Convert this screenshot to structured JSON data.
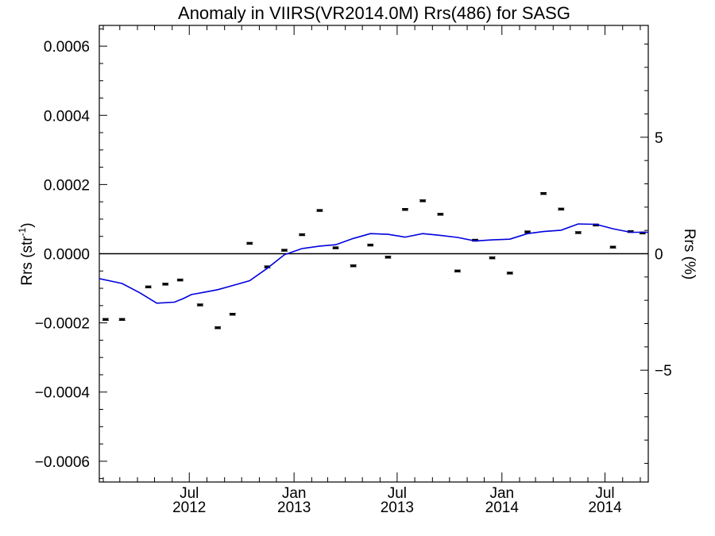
{
  "chart_data": {
    "type": "line",
    "title": "Anomaly in VIIRS(VR2014.0M) Rrs(486) for SASG",
    "ylabel_left": "Rrs (str",
    "ylabel_left_sup": "-1",
    "ylabel_left_close": ")",
    "ylabel_right": "Rrs (%)",
    "ylim_left": [
      -0.00066,
      0.00066
    ],
    "ylim_right": [
      -9.8,
      9.8
    ],
    "xlim": [
      "2012-01-25",
      "2014-09-15"
    ],
    "left_ticks": [
      {
        "value": 0.0006,
        "label": "0.0006"
      },
      {
        "value": 0.0004,
        "label": "0.0004"
      },
      {
        "value": 0.0002,
        "label": "0.0002"
      },
      {
        "value": 0.0,
        "label": "0.0000"
      },
      {
        "value": -0.0002,
        "label": "−0.0002"
      },
      {
        "value": -0.0004,
        "label": "−0.0004"
      },
      {
        "value": -0.0006,
        "label": "−0.0006"
      }
    ],
    "right_ticks": [
      {
        "value": 5,
        "label": "5"
      },
      {
        "value": 0,
        "label": "0"
      },
      {
        "value": -5,
        "label": "−5"
      }
    ],
    "x_ticks": [
      {
        "date": "2012-07-01",
        "line1": "Jul",
        "line2": "2012"
      },
      {
        "date": "2013-01-01",
        "line1": "Jan",
        "line2": "2013"
      },
      {
        "date": "2013-07-01",
        "line1": "Jul",
        "line2": "2013"
      },
      {
        "date": "2014-01-01",
        "line1": "Jan",
        "line2": "2014"
      },
      {
        "date": "2014-07-01",
        "line1": "Jul",
        "line2": "2014"
      }
    ],
    "series": [
      {
        "kind": "points",
        "color": "#000000",
        "x": [
          "2012-02-05",
          "2012-03-05",
          "2012-04-20",
          "2012-05-20",
          "2012-06-15",
          "2012-07-20",
          "2012-08-20",
          "2012-09-15",
          "2012-10-15",
          "2012-11-15",
          "2012-12-15",
          "2013-01-15",
          "2013-02-15",
          "2013-03-15",
          "2013-04-15",
          "2013-05-15",
          "2013-06-15",
          "2013-07-15",
          "2013-08-15",
          "2013-09-15",
          "2013-10-15",
          "2013-11-15",
          "2013-12-15",
          "2014-01-15",
          "2014-02-15",
          "2014-03-15",
          "2014-04-15",
          "2014-05-15",
          "2014-06-15",
          "2014-07-15",
          "2014-08-15",
          "2014-09-05"
        ],
        "y": [
          -0.00019,
          -0.00019,
          -9.6e-05,
          -8.8e-05,
          -7.6e-05,
          -0.000148,
          -0.000214,
          -0.000175,
          3e-05,
          -3.8e-05,
          1e-05,
          5.5e-05,
          0.000125,
          1.7e-05,
          -3.5e-05,
          2.5e-05,
          -1e-05,
          0.000128,
          0.000153,
          0.000114,
          -5e-05,
          3.9e-05,
          -1.2e-05,
          -5.6e-05,
          6.3e-05,
          0.000174,
          0.000129,
          6.1e-05,
          8.3e-05,
          1.9e-05,
          6.4e-05,
          6e-05
        ]
      },
      {
        "kind": "line",
        "color": "#0000dd",
        "x": [
          "2012-01-25",
          "2012-03-05",
          "2012-04-05",
          "2012-05-05",
          "2012-06-05",
          "2012-06-20",
          "2012-07-05",
          "2012-07-25",
          "2012-08-20",
          "2012-09-15",
          "2012-10-15",
          "2012-11-15",
          "2012-12-15",
          "2013-01-15",
          "2013-02-15",
          "2013-03-15",
          "2013-04-15",
          "2013-05-15",
          "2013-06-15",
          "2013-07-15",
          "2013-08-15",
          "2013-09-15",
          "2013-10-15",
          "2013-11-15",
          "2013-12-15",
          "2014-01-15",
          "2014-02-15",
          "2014-03-15",
          "2014-04-15",
          "2014-05-15",
          "2014-06-15",
          "2014-07-15",
          "2014-08-15",
          "2014-09-15"
        ],
        "y": [
          -7.2e-05,
          -8.6e-05,
          -0.000113,
          -0.000143,
          -0.00014,
          -0.00013,
          -0.000118,
          -0.000112,
          -0.000104,
          -9.2e-05,
          -7.8e-05,
          -4.2e-05,
          -3e-06,
          1.5e-05,
          2.2e-05,
          2.6e-05,
          4.4e-05,
          5.8e-05,
          5.6e-05,
          4.8e-05,
          5.8e-05,
          5.3e-05,
          4.7e-05,
          3.7e-05,
          4e-05,
          4.2e-05,
          5.8e-05,
          6.4e-05,
          6.8e-05,
          8.6e-05,
          8.5e-05,
          7.2e-05,
          6.2e-05,
          6.2e-05
        ]
      }
    ],
    "zero_line": 0,
    "grid": false,
    "legend": "none"
  }
}
